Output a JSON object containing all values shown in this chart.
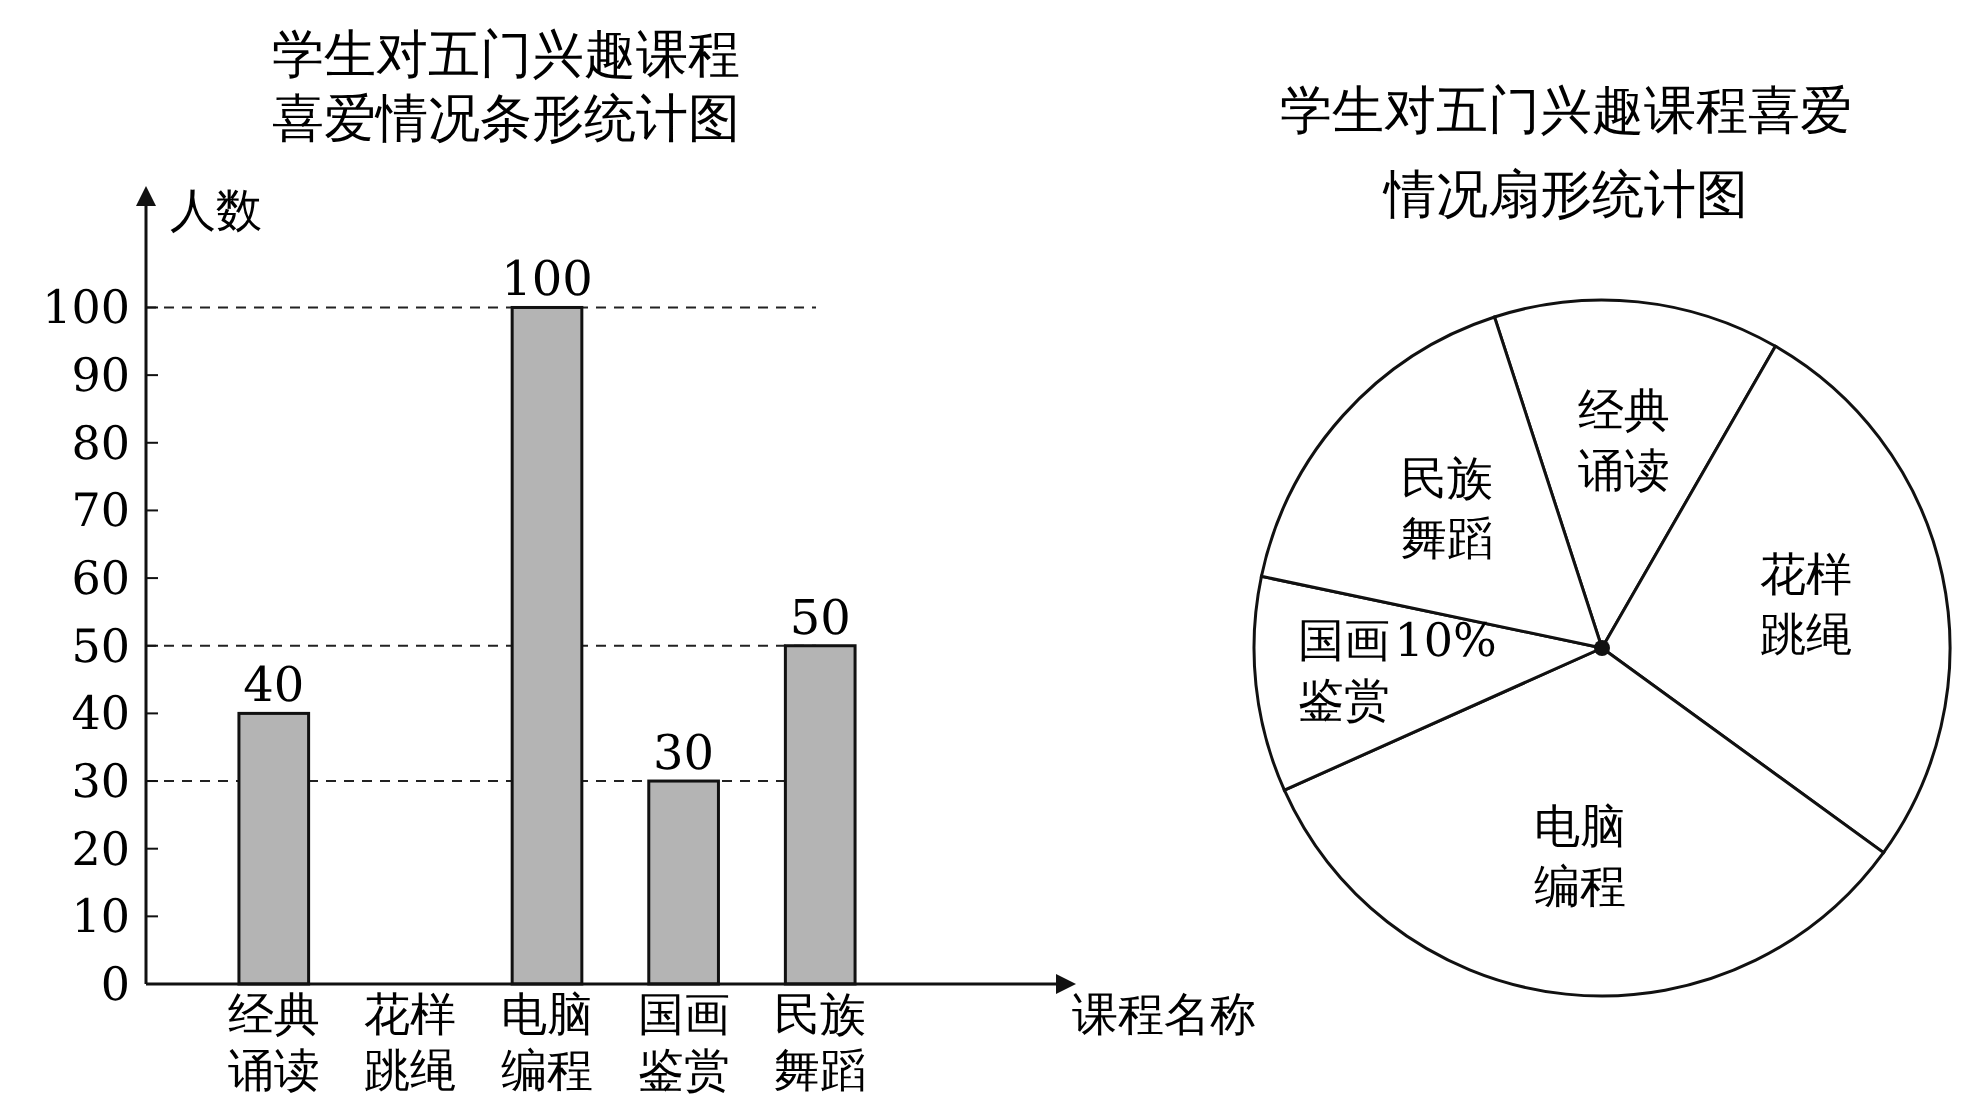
{
  "chart_data": [
    {
      "type": "bar",
      "title": "学生对五门兴趣课程喜爱情况条形统计图",
      "xlabel": "课程名称",
      "ylabel": "人数",
      "categories": [
        "经典诵读",
        "花样跳绳",
        "电脑编程",
        "国画鉴赏",
        "民族舞蹈"
      ],
      "values": [
        40,
        null,
        100,
        30,
        50
      ],
      "color": "#b4b4b4",
      "ylim": [
        0,
        115
      ],
      "yticks": [
        0,
        10,
        20,
        30,
        40,
        50,
        60,
        70,
        80,
        90,
        100
      ],
      "data_labels": true,
      "ref_lines": [
        {
          "axis": "y",
          "value": 100,
          "line_style": "dashed"
        },
        {
          "axis": "y",
          "value": 50,
          "line_style": "dashed"
        },
        {
          "axis": "y",
          "value": 30,
          "line_style": "dashed"
        }
      ]
    },
    {
      "type": "pie",
      "title": "学生对五门兴趣课程喜爱情况扇形统计图",
      "categories": [
        "经典诵读",
        "花样跳绳",
        "电脑编程",
        "国画鉴赏",
        "民族舞蹈"
      ],
      "values": [
        13.3,
        26.7,
        33.3,
        10,
        16.7
      ],
      "colors": [
        "#ffffff",
        "#ffffff",
        "#ffffff",
        "#ffffff",
        "#ffffff"
      ],
      "value_labels": [
        null,
        null,
        null,
        "10%",
        null
      ]
    }
  ]
}
